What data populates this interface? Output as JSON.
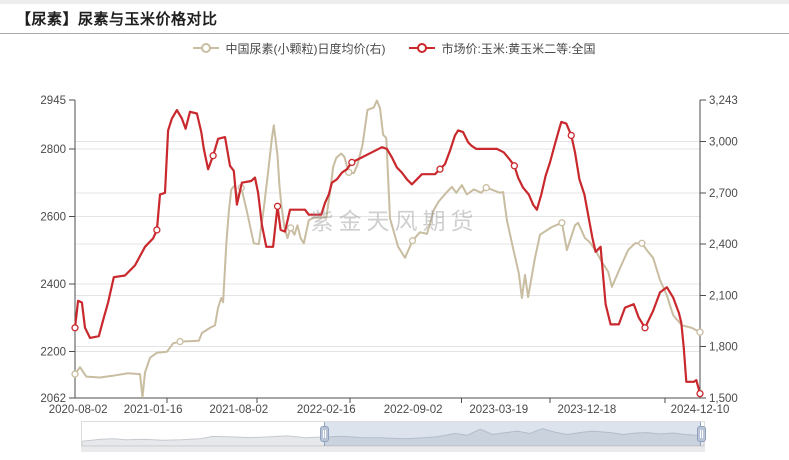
{
  "header": {
    "title": "【尿素】尿素与玉米价格对比"
  },
  "watermark": "紫金天风期货",
  "legend": [
    {
      "label": "中国尿素(小颗粒)日度均价(右)",
      "color": "#c9bda1"
    },
    {
      "label": "市场价:玉米:黄玉米二等:全国",
      "color": "#c9282d"
    }
  ],
  "chart_data": {
    "type": "line",
    "title": "尿素与玉米价格对比",
    "grid": true,
    "legend_position": "top",
    "x_axis": {
      "labels": [
        {
          "pct": 0.5,
          "text": "2020-08-02"
        },
        {
          "pct": 12.5,
          "text": "2021-01-16"
        },
        {
          "pct": 26.2,
          "text": "2021-08-02"
        },
        {
          "pct": 40.2,
          "text": "2022-02-16"
        },
        {
          "pct": 54.1,
          "text": "2022-09-02"
        },
        {
          "pct": 67.8,
          "text": "2023-03-19"
        },
        {
          "pct": 81.9,
          "text": "2023-12-18"
        },
        {
          "pct": 100,
          "text": "2024-12-10"
        }
      ],
      "tick_positions_pct": [
        14.7,
        29.1,
        44.0,
        61.8,
        76.0,
        94.4
      ]
    },
    "y_axis_left": {
      "min": 2062,
      "max": 2945,
      "ticks": [
        {
          "value": 2945,
          "text": "2945"
        },
        {
          "value": 2800,
          "text": "2800"
        },
        {
          "value": 2600,
          "text": "2600"
        },
        {
          "value": 2400,
          "text": "2400"
        },
        {
          "value": 2200,
          "text": "2200"
        },
        {
          "value": 2062,
          "text": "2062"
        }
      ],
      "grid_values": [
        2800,
        2600,
        2400,
        2200
      ]
    },
    "y_axis_right": {
      "min": 1500,
      "max": 3243,
      "ticks": [
        {
          "value": 3243,
          "text": "3,243"
        },
        {
          "value": 3000,
          "text": "3,000"
        },
        {
          "value": 2700,
          "text": "2,700"
        },
        {
          "value": 2400,
          "text": "2,400"
        },
        {
          "value": 2100,
          "text": "2,100"
        },
        {
          "value": 1800,
          "text": "1,800"
        },
        {
          "value": 1500,
          "text": "1,500"
        }
      ],
      "grid_values": [
        3000,
        2700,
        2400,
        2100,
        1800
      ]
    },
    "series": [
      {
        "name": "中国尿素(小颗粒)日度均价(右)",
        "axis": "right",
        "color": "#c9bda1",
        "points": [
          [
            0,
            1640
          ],
          [
            0.8,
            1680
          ],
          [
            1.8,
            1625
          ],
          [
            4,
            1620
          ],
          [
            6,
            1630
          ],
          [
            8.5,
            1645
          ],
          [
            10.4,
            1640
          ],
          [
            10.8,
            1505
          ],
          [
            11.2,
            1650
          ],
          [
            12,
            1735
          ],
          [
            13.1,
            1765
          ],
          [
            14.7,
            1770
          ],
          [
            15.7,
            1820
          ],
          [
            16.8,
            1830
          ],
          [
            19.8,
            1835
          ],
          [
            20.3,
            1880
          ],
          [
            21.6,
            1910
          ],
          [
            22.4,
            1925
          ],
          [
            22.9,
            2030
          ],
          [
            23.4,
            2085
          ],
          [
            23.7,
            2060
          ],
          [
            24.2,
            2400
          ],
          [
            24.6,
            2590
          ],
          [
            25,
            2720
          ],
          [
            25.6,
            2745
          ],
          [
            26,
            2670
          ],
          [
            26.6,
            2730
          ],
          [
            27.4,
            2610
          ],
          [
            28.6,
            2405
          ],
          [
            29.4,
            2400
          ],
          [
            30.2,
            2610
          ],
          [
            30.9,
            2820
          ],
          [
            31.5,
            3020
          ],
          [
            31.8,
            3095
          ],
          [
            32.4,
            2920
          ],
          [
            32.7,
            2745
          ],
          [
            33,
            2630
          ],
          [
            33.5,
            2500
          ],
          [
            34,
            2435
          ],
          [
            34.5,
            2495
          ],
          [
            35.1,
            2455
          ],
          [
            35.6,
            2510
          ],
          [
            36.1,
            2435
          ],
          [
            36.6,
            2405
          ],
          [
            37.4,
            2540
          ],
          [
            38.2,
            2555
          ],
          [
            40.2,
            2555
          ],
          [
            40.9,
            2730
          ],
          [
            41.3,
            2850
          ],
          [
            41.8,
            2905
          ],
          [
            42.6,
            2930
          ],
          [
            43.1,
            2910
          ],
          [
            43.8,
            2820
          ],
          [
            44.6,
            2815
          ],
          [
            45.2,
            2865
          ],
          [
            46,
            2980
          ],
          [
            46.8,
            3185
          ],
          [
            47.8,
            3200
          ],
          [
            48.3,
            3240
          ],
          [
            48.8,
            3195
          ],
          [
            49.3,
            3040
          ],
          [
            49.8,
            3020
          ],
          [
            50.4,
            2550
          ],
          [
            51.7,
            2385
          ],
          [
            52.8,
            2320
          ],
          [
            54,
            2420
          ],
          [
            55.2,
            2470
          ],
          [
            56.3,
            2460
          ],
          [
            56.8,
            2520
          ],
          [
            57.4,
            2600
          ],
          [
            58.2,
            2650
          ],
          [
            59.5,
            2705
          ],
          [
            60.3,
            2735
          ],
          [
            61,
            2700
          ],
          [
            61.9,
            2745
          ],
          [
            62.7,
            2690
          ],
          [
            63.8,
            2720
          ],
          [
            65,
            2700
          ],
          [
            65.8,
            2730
          ],
          [
            66.6,
            2720
          ],
          [
            68,
            2700
          ],
          [
            68.5,
            2705
          ],
          [
            69.1,
            2540
          ],
          [
            70.1,
            2375
          ],
          [
            71,
            2230
          ],
          [
            71.5,
            2085
          ],
          [
            72,
            2220
          ],
          [
            72.5,
            2090
          ],
          [
            73.6,
            2320
          ],
          [
            74.4,
            2455
          ],
          [
            76.3,
            2500
          ],
          [
            77.9,
            2525
          ],
          [
            78.7,
            2365
          ],
          [
            80,
            2510
          ],
          [
            80.5,
            2525
          ],
          [
            81.6,
            2435
          ],
          [
            82.4,
            2410
          ],
          [
            83.5,
            2350
          ],
          [
            84.3,
            2295
          ],
          [
            85.3,
            2240
          ],
          [
            85.9,
            2150
          ],
          [
            87.2,
            2260
          ],
          [
            88.5,
            2365
          ],
          [
            89.6,
            2405
          ],
          [
            90.7,
            2405
          ],
          [
            91.7,
            2355
          ],
          [
            92.5,
            2320
          ],
          [
            93.6,
            2190
          ],
          [
            94.7,
            2100
          ],
          [
            95.7,
            1985
          ],
          [
            97.1,
            1925
          ],
          [
            98.7,
            1910
          ],
          [
            100,
            1885
          ]
        ]
      },
      {
        "name": "市场价:玉米:黄玉米二等:全国",
        "axis": "left",
        "color": "#c9282d",
        "points": [
          [
            0,
            2270
          ],
          [
            0.5,
            2350
          ],
          [
            1.1,
            2345
          ],
          [
            1.6,
            2270
          ],
          [
            2.4,
            2240
          ],
          [
            3.8,
            2245
          ],
          [
            4.6,
            2300
          ],
          [
            5.3,
            2345
          ],
          [
            6.2,
            2420
          ],
          [
            8,
            2425
          ],
          [
            9.6,
            2455
          ],
          [
            11.2,
            2510
          ],
          [
            12.5,
            2535
          ],
          [
            13.1,
            2560
          ],
          [
            13.6,
            2665
          ],
          [
            14.4,
            2670
          ],
          [
            14.9,
            2855
          ],
          [
            15.5,
            2890
          ],
          [
            16.3,
            2915
          ],
          [
            17.1,
            2890
          ],
          [
            17.7,
            2860
          ],
          [
            18.4,
            2910
          ],
          [
            19.5,
            2905
          ],
          [
            20.2,
            2850
          ],
          [
            20.6,
            2800
          ],
          [
            21.3,
            2740
          ],
          [
            22.1,
            2780
          ],
          [
            22.9,
            2830
          ],
          [
            24,
            2835
          ],
          [
            24.8,
            2750
          ],
          [
            25.4,
            2735
          ],
          [
            25.9,
            2635
          ],
          [
            26.7,
            2700
          ],
          [
            28.2,
            2705
          ],
          [
            28.8,
            2715
          ],
          [
            29.3,
            2670
          ],
          [
            29.9,
            2575
          ],
          [
            30.6,
            2510
          ],
          [
            31.7,
            2510
          ],
          [
            32.4,
            2630
          ],
          [
            32.9,
            2560
          ],
          [
            33.6,
            2555
          ],
          [
            34.4,
            2620
          ],
          [
            36.8,
            2620
          ],
          [
            37.4,
            2605
          ],
          [
            39.4,
            2605
          ],
          [
            40,
            2640
          ],
          [
            40.6,
            2665
          ],
          [
            41.1,
            2700
          ],
          [
            41.9,
            2710
          ],
          [
            42.7,
            2730
          ],
          [
            43.5,
            2740
          ],
          [
            44.3,
            2760
          ],
          [
            45.9,
            2775
          ],
          [
            47.5,
            2790
          ],
          [
            49.1,
            2805
          ],
          [
            49.9,
            2800
          ],
          [
            50.7,
            2775
          ],
          [
            51.5,
            2745
          ],
          [
            52.3,
            2730
          ],
          [
            53.1,
            2710
          ],
          [
            53.9,
            2695
          ],
          [
            54.7,
            2710
          ],
          [
            55.5,
            2725
          ],
          [
            57.6,
            2725
          ],
          [
            58.4,
            2740
          ],
          [
            59.2,
            2755
          ],
          [
            60,
            2795
          ],
          [
            60.8,
            2840
          ],
          [
            61.3,
            2855
          ],
          [
            62.1,
            2850
          ],
          [
            62.9,
            2820
          ],
          [
            63.4,
            2810
          ],
          [
            64.2,
            2800
          ],
          [
            66.1,
            2800
          ],
          [
            67.5,
            2800
          ],
          [
            68.6,
            2790
          ],
          [
            69.5,
            2770
          ],
          [
            70.3,
            2750
          ],
          [
            70.9,
            2715
          ],
          [
            71.7,
            2685
          ],
          [
            72.6,
            2665
          ],
          [
            73.3,
            2635
          ],
          [
            73.9,
            2620
          ],
          [
            74.6,
            2665
          ],
          [
            75.3,
            2720
          ],
          [
            76,
            2760
          ],
          [
            76.8,
            2815
          ],
          [
            77.4,
            2855
          ],
          [
            77.8,
            2880
          ],
          [
            78.6,
            2875
          ],
          [
            79.4,
            2840
          ],
          [
            80,
            2790
          ],
          [
            80.7,
            2710
          ],
          [
            81.5,
            2665
          ],
          [
            82.8,
            2535
          ],
          [
            83.3,
            2495
          ],
          [
            84.1,
            2510
          ],
          [
            84.9,
            2340
          ],
          [
            85.7,
            2280
          ],
          [
            87,
            2280
          ],
          [
            88,
            2330
          ],
          [
            89.4,
            2340
          ],
          [
            90.2,
            2300
          ],
          [
            91.2,
            2270
          ],
          [
            92.5,
            2320
          ],
          [
            93.6,
            2375
          ],
          [
            94.7,
            2390
          ],
          [
            95.7,
            2360
          ],
          [
            96.6,
            2315
          ],
          [
            97,
            2285
          ],
          [
            97.4,
            2210
          ],
          [
            97.8,
            2110
          ],
          [
            99,
            2110
          ],
          [
            99.4,
            2115
          ],
          [
            100,
            2075
          ]
        ]
      }
    ]
  },
  "navigator": {
    "selected_range_pct": [
      38.9,
      99.5
    ],
    "mini_series": [
      [
        0,
        0.8
      ],
      [
        0.03,
        0.72
      ],
      [
        0.05,
        0.7
      ],
      [
        0.07,
        0.74
      ],
      [
        0.1,
        0.72
      ],
      [
        0.13,
        0.76
      ],
      [
        0.16,
        0.74
      ],
      [
        0.19,
        0.7
      ],
      [
        0.21,
        0.6
      ],
      [
        0.24,
        0.62
      ],
      [
        0.27,
        0.65
      ],
      [
        0.3,
        0.62
      ],
      [
        0.33,
        0.58
      ],
      [
        0.36,
        0.66
      ],
      [
        0.39,
        0.62
      ],
      [
        0.42,
        0.6
      ],
      [
        0.45,
        0.65
      ],
      [
        0.48,
        0.66
      ],
      [
        0.52,
        0.7
      ],
      [
        0.55,
        0.66
      ],
      [
        0.57,
        0.62
      ],
      [
        0.6,
        0.48
      ],
      [
        0.62,
        0.55
      ],
      [
        0.64,
        0.3
      ],
      [
        0.66,
        0.52
      ],
      [
        0.68,
        0.45
      ],
      [
        0.7,
        0.38
      ],
      [
        0.72,
        0.48
      ],
      [
        0.74,
        0.28
      ],
      [
        0.76,
        0.42
      ],
      [
        0.78,
        0.52
      ],
      [
        0.8,
        0.44
      ],
      [
        0.82,
        0.38
      ],
      [
        0.85,
        0.44
      ],
      [
        0.87,
        0.52
      ],
      [
        0.89,
        0.46
      ],
      [
        0.91,
        0.44
      ],
      [
        0.93,
        0.5
      ],
      [
        0.95,
        0.46
      ],
      [
        0.97,
        0.52
      ],
      [
        1,
        0.58
      ]
    ]
  }
}
